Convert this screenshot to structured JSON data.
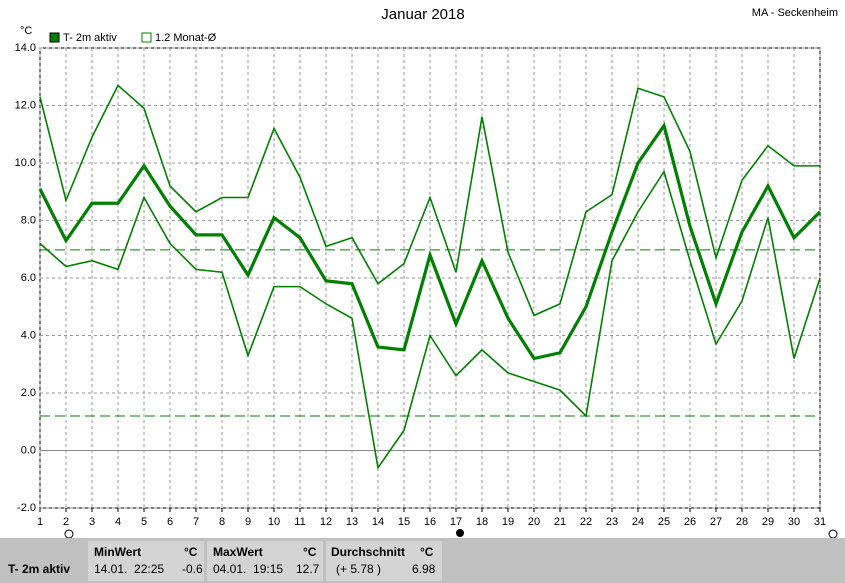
{
  "chart_data": {
    "type": "line",
    "title": "Januar 2018",
    "station": "MA - Seckenheim",
    "y_unit": "°C",
    "legend": [
      {
        "label": "T- 2m aktiv",
        "filled": true
      },
      {
        "label": "1.2 Monat-Ø",
        "filled": false
      }
    ],
    "x": [
      1,
      2,
      3,
      4,
      5,
      6,
      7,
      8,
      9,
      10,
      11,
      12,
      13,
      14,
      15,
      16,
      17,
      18,
      19,
      20,
      21,
      22,
      23,
      24,
      25,
      26,
      27,
      28,
      29,
      30,
      31
    ],
    "xlim": [
      1,
      31
    ],
    "xticks": [
      1,
      2,
      3,
      4,
      5,
      6,
      7,
      8,
      9,
      10,
      11,
      12,
      13,
      14,
      15,
      16,
      17,
      18,
      19,
      20,
      21,
      22,
      23,
      24,
      25,
      26,
      27,
      28,
      29,
      30,
      31
    ],
    "ylim": [
      -2,
      14
    ],
    "yticks": [
      {
        "value": -2,
        "label": "-2.0"
      },
      {
        "value": 0,
        "label": "0.0"
      },
      {
        "value": 2,
        "label": "2.0"
      },
      {
        "value": 4,
        "label": "4.0"
      },
      {
        "value": 6,
        "label": "6.0"
      },
      {
        "value": 8,
        "label": "8.0"
      },
      {
        "value": 10,
        "label": "10.0"
      },
      {
        "value": 12,
        "label": "12.0"
      },
      {
        "value": 14,
        "label": "14.0"
      }
    ],
    "grid": true,
    "series": [
      {
        "color": "#008000",
        "width": 1.6,
        "values": [
          12.3,
          8.7,
          10.9,
          12.7,
          11.9,
          9.2,
          8.3,
          8.8,
          8.8,
          11.2,
          9.5,
          7.1,
          7.4,
          5.8,
          6.5,
          8.8,
          6.2,
          11.6,
          6.9,
          4.7,
          5.1,
          8.3,
          8.9,
          12.6,
          12.3,
          10.4,
          6.7,
          9.4,
          10.6,
          9.9,
          9.9
        ]
      },
      {
        "color": "#008000",
        "width": 3.2,
        "values": [
          9.1,
          7.3,
          8.6,
          8.6,
          9.9,
          8.5,
          7.5,
          7.5,
          6.1,
          8.1,
          7.4,
          5.9,
          5.8,
          3.6,
          3.5,
          6.8,
          4.4,
          6.6,
          4.6,
          3.2,
          3.4,
          5.0,
          7.6,
          10.0,
          11.3,
          7.8,
          5.1,
          7.6,
          9.2,
          7.4,
          8.3
        ]
      },
      {
        "color": "#008000",
        "width": 1.6,
        "values": [
          7.2,
          6.4,
          6.6,
          6.3,
          8.8,
          7.2,
          6.3,
          6.2,
          3.3,
          5.7,
          5.7,
          5.1,
          4.6,
          -0.6,
          0.7,
          4.0,
          2.6,
          3.5,
          2.7,
          2.4,
          2.1,
          1.2,
          6.6,
          8.3,
          9.7,
          6.6,
          3.7,
          5.2,
          8.1,
          3.2,
          6.0
        ]
      }
    ],
    "reference_lines": [
      {
        "value": 6.98,
        "color": "#008000"
      },
      {
        "value": 1.2,
        "color": "#008000"
      }
    ]
  },
  "table": {
    "row_label": "T- 2m aktiv",
    "headers": [
      "MinWert",
      "°C",
      "MaxWert",
      "°C",
      "Durchschnitt",
      "°C"
    ],
    "cells": [
      "14.01.  22:25",
      "-0.6",
      "04.01.  19:15",
      "12.7",
      "(+ 5.78 )",
      "6.98"
    ]
  }
}
